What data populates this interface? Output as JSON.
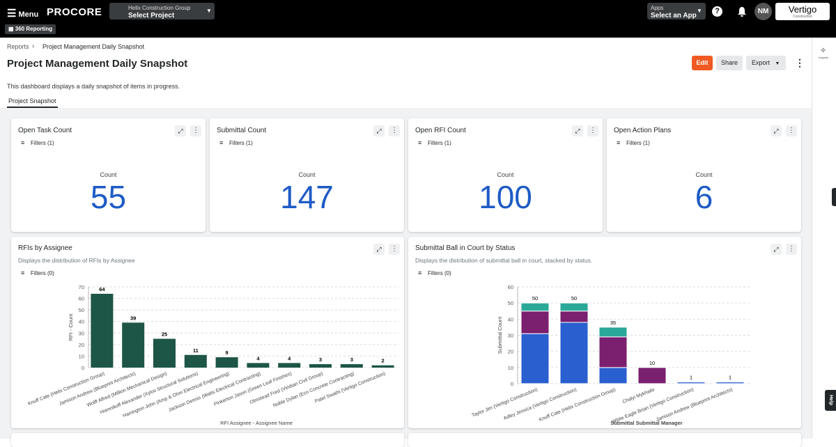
{
  "header": {
    "menu": "Menu",
    "logo": "PROCORE",
    "company": "Helix Construction Group",
    "project": "Select Project",
    "apps_label": "Apps",
    "apps": "Select an App",
    "help": "?",
    "user": "NM",
    "brand": "Vertigo",
    "brand_sub": "Construction",
    "tool": "360 Reporting"
  },
  "breadcrumb": [
    "Reports",
    "Project Management Daily Snapshot"
  ],
  "title": "Project Management Daily Snapshot",
  "buttons": [
    "Edit",
    "Share",
    "Export"
  ],
  "description": "This dashboard displays a daily snapshot of items in progress.",
  "tab": "Project Snapshot",
  "sidebar": "Insights",
  "help_tab": "Help",
  "kpis": [
    {
      "title": "Open Task Count",
      "filters": "Filters (1)",
      "label": "Count",
      "value": 55
    },
    {
      "title": "Submittal Count",
      "filters": "Filters (1)",
      "label": "Count",
      "value": 147
    },
    {
      "title": "Open RFI Count",
      "filters": "Filters (1)",
      "label": "Count",
      "value": 100
    },
    {
      "title": "Open Action Plans",
      "filters": "Filters (1)",
      "label": "Count",
      "value": 6
    }
  ],
  "chart_data": [
    {
      "type": "bar",
      "title": "RFIs by Assignee",
      "subtitle": "Displays the distribution of RFIs by Assignee",
      "filters": "Filters (0)",
      "x_label": "RFI Assignee - Assignee Name",
      "y_label": "RFI - Count",
      "categories": [
        "Knuff Cate (Helix Construction Group)",
        "Jamison Andrew (Blueprint Architects)",
        "Wolff Alfred (Million Mechanical Design)",
        "Hrennikoff Alexander (Xylos Structural Solutions)",
        "Harrington John (Amp & Ohm Electrical Engineering)",
        "Jackson Dennis (Watts Electrical Contracting)",
        "Pinkerton Jason (Green Leaf Finishes)",
        "Olmstead Fred (Viridian Civil Group)",
        "Noble Dylan (Eco Concrete Contracting)",
        "Patel Swathi (Vertigo Construction)"
      ],
      "values": [
        64,
        39,
        25,
        11,
        9,
        4,
        4,
        3,
        3,
        2
      ],
      "color": "#1d5646",
      "ylim": [
        0,
        70
      ],
      "yticks": [
        0,
        10,
        20,
        30,
        40,
        50,
        60,
        70
      ],
      "grid": true
    },
    {
      "type": "stacked_bar",
      "title": "Submittal Ball in Court by Status",
      "subtitle": "Displays the distribution of submittal ball in court, stacked by status.",
      "filters": "Filters (0)",
      "x_label": "Submittal Submittal Manager",
      "y_label": "Submittal Count",
      "categories": [
        "Taylor Jim (Vertigo Construction)",
        "Adley Jessica (Vertigo Construction)",
        "Knuff Cate (Helix Construction Group)",
        "Chalyi Mykhailo",
        "White Eagle Brian (Vertigo Construction)",
        "Jamison Andrew (Blueprint Architects)"
      ],
      "series": [
        {
          "color": "#2a5fcf",
          "values": [
            31,
            38,
            10,
            0,
            1,
            1
          ]
        },
        {
          "color": "#7b1f6f",
          "values": [
            14,
            7,
            19,
            10,
            0,
            0
          ]
        },
        {
          "color": "#2aa898",
          "values": [
            5,
            5,
            6,
            0,
            0,
            0
          ]
        }
      ],
      "total_labels": [
        "50",
        "50",
        "35",
        "10",
        "1",
        "1"
      ],
      "ylim": [
        0,
        60
      ],
      "yticks": [
        0,
        10,
        20,
        30,
        40,
        50,
        60
      ],
      "grid": true
    }
  ]
}
